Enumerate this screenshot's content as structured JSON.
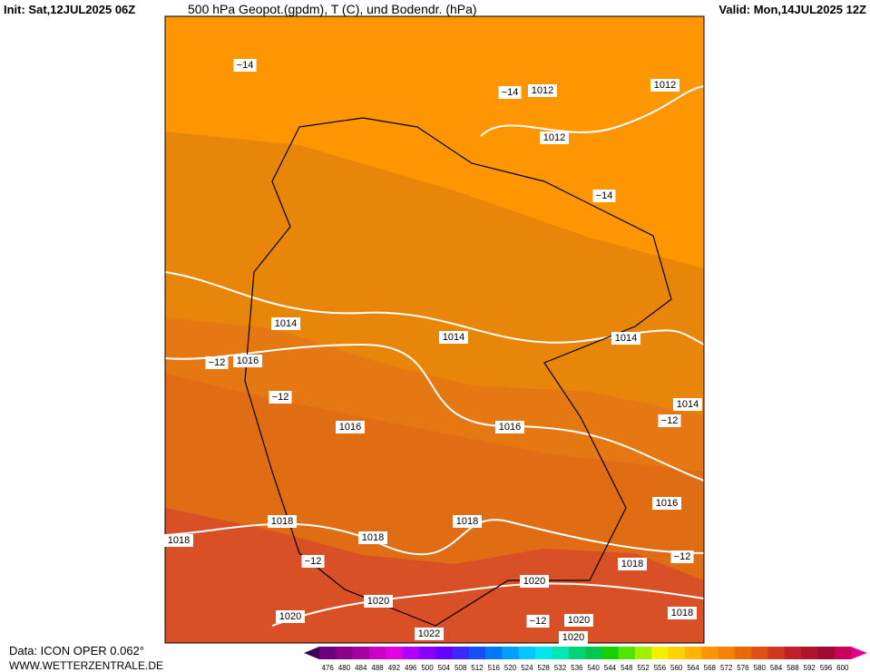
{
  "header": {
    "init": "Init: Sat,12JUL2025 06Z",
    "title": "500 hPa Geopot.(gpdm), T (C), und Bodendr. (hPa)",
    "valid": "Valid: Mon,14JUL2025 12Z"
  },
  "map": {
    "isobar_labels": [
      "1012",
      "1012",
      "1012",
      "1014",
      "1014",
      "1014",
      "1014",
      "1016",
      "1016",
      "1016",
      "1016",
      "1018",
      "1018",
      "1018",
      "1018",
      "1018",
      "1018",
      "1020",
      "1020",
      "1020",
      "1020",
      "1020",
      "1022"
    ],
    "temperature_labels": [
      "−14",
      "−14",
      "−14",
      "−12",
      "−12",
      "−12",
      "−12",
      "−12",
      "−12"
    ],
    "band_colors": [
      "#fd9600",
      "#e8860a",
      "#e57812",
      "#e06c14",
      "#d94f26"
    ]
  },
  "legend": {
    "levels": [
      476,
      480,
      484,
      488,
      492,
      496,
      500,
      504,
      508,
      512,
      516,
      520,
      524,
      528,
      532,
      536,
      540,
      544,
      548,
      552,
      556,
      560,
      564,
      568,
      572,
      576,
      580,
      584,
      588,
      592,
      596,
      600
    ],
    "colors": [
      "#6a0080",
      "#8a008a",
      "#a400a4",
      "#c800c8",
      "#e000e0",
      "#b000ff",
      "#8a00ff",
      "#6400ff",
      "#3c28ff",
      "#1450ff",
      "#0078ff",
      "#00a0ff",
      "#00c8ff",
      "#00e6f0",
      "#00e6b4",
      "#00d278",
      "#00c850",
      "#14d200",
      "#50e600",
      "#a0f000",
      "#f0f000",
      "#ffd200",
      "#ffb400",
      "#ff9600",
      "#f58200",
      "#e86a00",
      "#e05014",
      "#d2381e",
      "#c01e28",
      "#b0142d",
      "#a00a32",
      "#c8005a"
    ],
    "low_color": "#3c0050",
    "high_color": "#e0008c"
  },
  "footer": {
    "data": "Data: ICON OPER 0.062°",
    "site": "WWW.WETTERZENTRALE.DE"
  }
}
